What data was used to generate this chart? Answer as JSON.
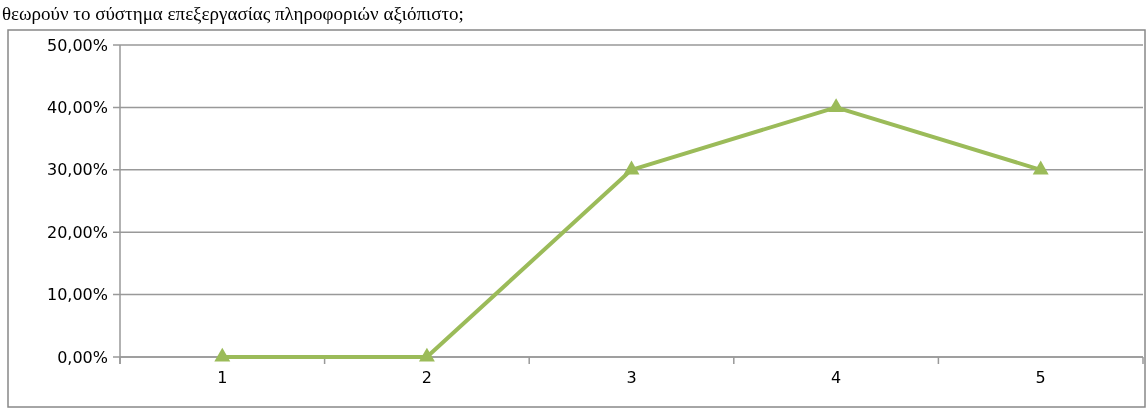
{
  "chart_data": {
    "type": "line",
    "title": "θεωρούν το σύστημα επεξεργασίας πληροφοριών αξιόπιστο;",
    "categories": [
      "1",
      "2",
      "3",
      "4",
      "5"
    ],
    "series": [
      {
        "color": "#9bbb59",
        "values": [
          0,
          0,
          30,
          40,
          30
        ]
      }
    ],
    "ylim": [
      0,
      50
    ],
    "yticks": [
      {
        "value": 0,
        "label": "0,00%"
      },
      {
        "value": 10,
        "label": "10,00%"
      },
      {
        "value": 20,
        "label": "20,00%"
      },
      {
        "value": 30,
        "label": "30,00%"
      },
      {
        "value": 40,
        "label": "40,00%"
      },
      {
        "value": 50,
        "label": "50,00%"
      }
    ],
    "grid": "y",
    "marker": "triangle",
    "line_style": "solid"
  }
}
